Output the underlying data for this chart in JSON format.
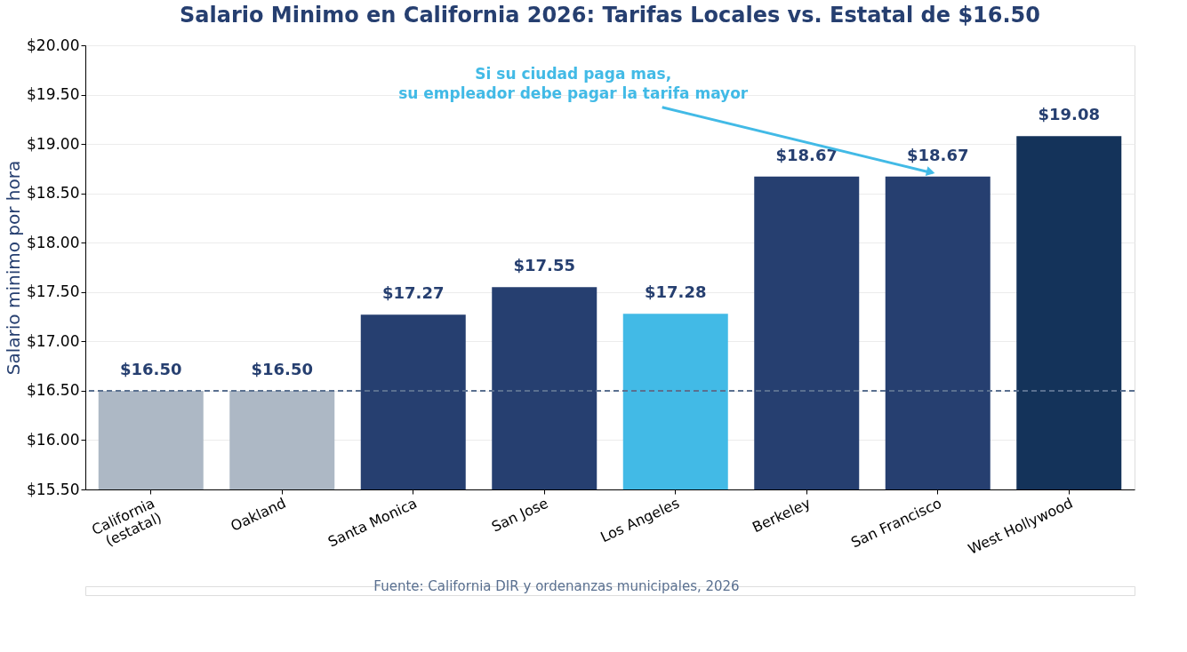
{
  "chart_data": {
    "type": "bar",
    "title": "Salario Minimo en California 2026: Tarifas Locales vs. Estatal de $16.50",
    "ylabel": "Salario minimo por hora",
    "categories": [
      "California\n(estatal)",
      "Oakland",
      "Santa Monica",
      "San Jose",
      "Los Angeles",
      "Berkeley",
      "San Francisco",
      "West Hollywood"
    ],
    "values": [
      16.5,
      16.5,
      17.27,
      17.55,
      17.28,
      18.67,
      18.67,
      19.08
    ],
    "colors": [
      "#adb8c5",
      "#adb8c5",
      "#263f70",
      "#263f70",
      "#42bae6",
      "#263f70",
      "#263f70",
      "#14335a"
    ],
    "value_labels": [
      "$16.50",
      "$16.50",
      "$17.27",
      "$17.55",
      "$17.28",
      "$18.67",
      "$18.67",
      "$19.08"
    ],
    "ylim": [
      15.5,
      20.0
    ],
    "yticks": [
      {
        "value": 15.5,
        "label": "$15.50"
      },
      {
        "value": 16.0,
        "label": "$16.00"
      },
      {
        "value": 16.5,
        "label": "$16.50"
      },
      {
        "value": 17.0,
        "label": "$17.00"
      },
      {
        "value": 17.5,
        "label": "$17.50"
      },
      {
        "value": 18.0,
        "label": "$18.00"
      },
      {
        "value": 18.5,
        "label": "$18.50"
      },
      {
        "value": 19.0,
        "label": "$19.00"
      },
      {
        "value": 19.5,
        "label": "$19.50"
      },
      {
        "value": 20.0,
        "label": "$20.00"
      }
    ],
    "ref_lines": [
      {
        "axis": "y",
        "value": 16.5,
        "color": "#5a7090",
        "line_style": "dashed"
      }
    ],
    "annotations": [
      {
        "text": "Si su ciudad paga mas,\nsu empleador debe pagar la tarifa mayor",
        "x": "San Francisco",
        "y": 18.67
      },
      "Fuente: California DIR y ordenanzas municipales, 2026"
    ],
    "grid": "y",
    "legend": false
  }
}
